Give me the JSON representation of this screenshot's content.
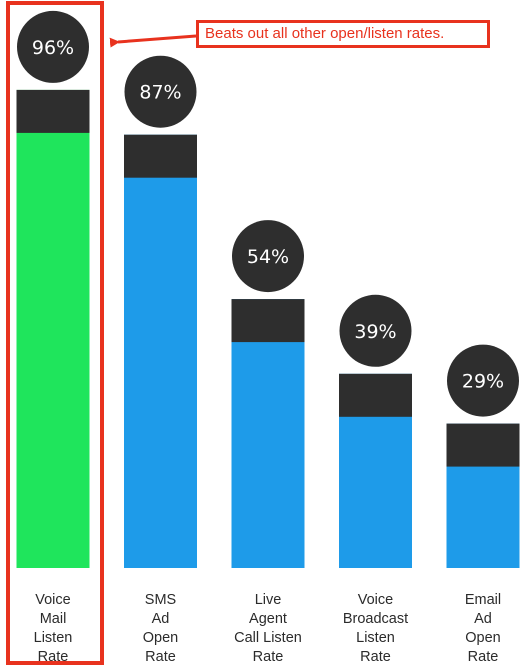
{
  "chart_data": {
    "type": "bar",
    "categories": [
      [
        "Voice",
        "Mail",
        "Listen",
        "Rate"
      ],
      [
        "SMS",
        "Ad",
        "Open",
        "Rate"
      ],
      [
        "Live",
        "Agent",
        "Call Listen",
        "Rate"
      ],
      [
        "Voice",
        "Broadcast",
        "Listen",
        "Rate"
      ],
      [
        "Email",
        "Ad",
        "Open",
        "Rate"
      ]
    ],
    "values": [
      96,
      87,
      54,
      39,
      29
    ],
    "value_labels": [
      "96%",
      "87%",
      "54%",
      "39%",
      "29%"
    ],
    "highlighted_index": 0,
    "annotation": "Beats out all other open/listen rates.",
    "colors": {
      "highlight_bar": "#1fe55c",
      "bar": "#1e9be9",
      "bar_cap": "#2e2e2e",
      "label_circle": "#2e2e2e",
      "callout": "#e8321e"
    }
  }
}
